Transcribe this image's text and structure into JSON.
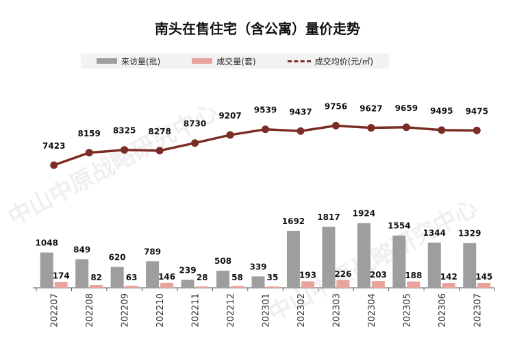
{
  "chart_data": {
    "type": "bar+line",
    "title": "南头在售住宅（含公寓）量价走势",
    "categories": [
      "202207",
      "202208",
      "202209",
      "202210",
      "202211",
      "202212",
      "202301",
      "202302",
      "202303",
      "202304",
      "202305",
      "202306",
      "202307"
    ],
    "series": [
      {
        "name": "来访量(批)",
        "type": "bar",
        "color": "#9e9e9e",
        "values": [
          1048,
          849,
          620,
          789,
          239,
          508,
          339,
          1692,
          1817,
          1924,
          1554,
          1344,
          1329
        ]
      },
      {
        "name": "成交量(套)",
        "type": "bar",
        "color": "#e8a49c",
        "values": [
          174,
          82,
          63,
          146,
          28,
          58,
          35,
          193,
          226,
          203,
          188,
          142,
          145
        ]
      },
      {
        "name": "成交均价(元/㎡)",
        "type": "line",
        "color": "#7b2c24",
        "values": [
          7423,
          8159,
          8325,
          8278,
          8730,
          9207,
          9539,
          9437,
          9756,
          9627,
          9659,
          9495,
          9475
        ]
      }
    ],
    "legend_position": "top",
    "grid": false
  },
  "watermark": "中山中原战略研究中心",
  "legend_colors": {
    "visits": "#9e9e9e",
    "deals": "#e8a49c",
    "price": "#7b2c24"
  }
}
